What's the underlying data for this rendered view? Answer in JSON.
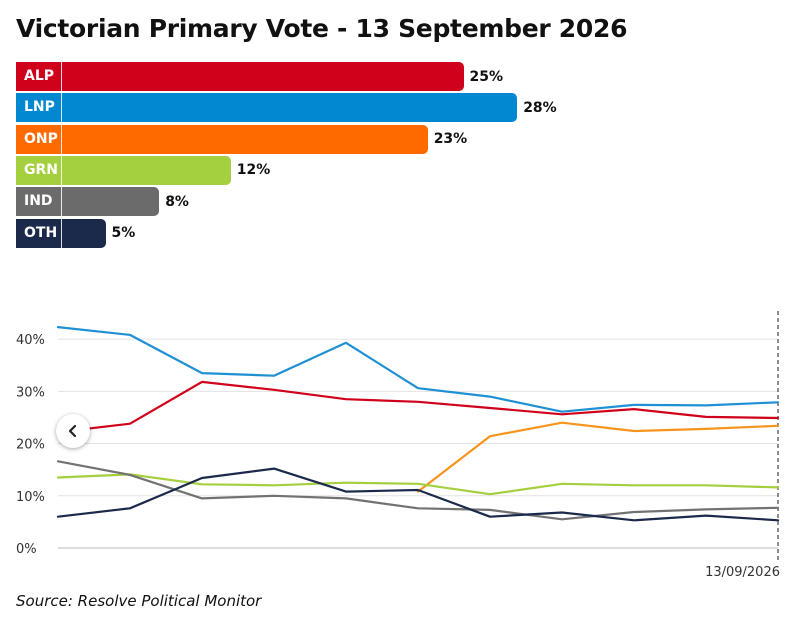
{
  "title": "Victorian Primary Vote - 13 September 2026",
  "source": "Source: Resolve Political Monitor",
  "nav": {
    "back_icon": "chevron-left-icon"
  },
  "bars": [
    {
      "party": "ALP",
      "value": 25,
      "label": "25%",
      "color": "#d0021b"
    },
    {
      "party": "LNP",
      "value": 28,
      "label": "28%",
      "color": "#0288d1"
    },
    {
      "party": "ONP",
      "value": 23,
      "label": "23%",
      "color": "#ff6a00"
    },
    {
      "party": "GRN",
      "value": 12,
      "label": "12%",
      "color": "#a4cf3f"
    },
    {
      "party": "IND",
      "value": 8,
      "label": "8%",
      "color": "#6b6b6b"
    },
    {
      "party": "OTH",
      "value": 5,
      "label": "5%",
      "color": "#1b2a4a"
    }
  ],
  "chart_data": {
    "type": "line",
    "ylim": [
      0,
      45
    ],
    "yticks": [
      0,
      10,
      20,
      30,
      40
    ],
    "ytick_labels": [
      "0%",
      "10%",
      "20%",
      "30%",
      "40%"
    ],
    "x_label_text": "13/09/2026",
    "grid": true,
    "series": [
      {
        "name": "LNP",
        "color": "#1e90d4",
        "values": [
          42.3,
          40.8,
          33.5,
          33.0,
          39.3,
          30.6,
          29.0,
          26.1,
          27.4,
          27.3,
          27.9
        ]
      },
      {
        "name": "ALP",
        "color": "#d0021b",
        "values": [
          22.2,
          23.8,
          31.8,
          30.3,
          28.5,
          28.0,
          26.8,
          25.6,
          26.6,
          25.1,
          24.9
        ]
      },
      {
        "name": "ONP",
        "color": "#f7941d",
        "values": [
          null,
          null,
          null,
          null,
          null,
          10.8,
          21.4,
          24.0,
          22.4,
          22.8,
          23.4
        ]
      },
      {
        "name": "GRN",
        "color": "#a4cf3f",
        "values": [
          13.5,
          14.1,
          12.2,
          12.0,
          12.5,
          12.3,
          10.3,
          12.3,
          12.0,
          12.0,
          11.6
        ]
      },
      {
        "name": "IND",
        "color": "#727272",
        "values": [
          16.6,
          14.0,
          9.5,
          10.0,
          9.5,
          7.6,
          7.3,
          5.5,
          6.9,
          7.4,
          7.7
        ]
      },
      {
        "name": "OTH",
        "color": "#1b2a4a",
        "values": [
          6.0,
          7.6,
          13.4,
          15.2,
          10.8,
          11.1,
          6.0,
          6.8,
          5.3,
          6.2,
          5.3
        ]
      }
    ]
  }
}
